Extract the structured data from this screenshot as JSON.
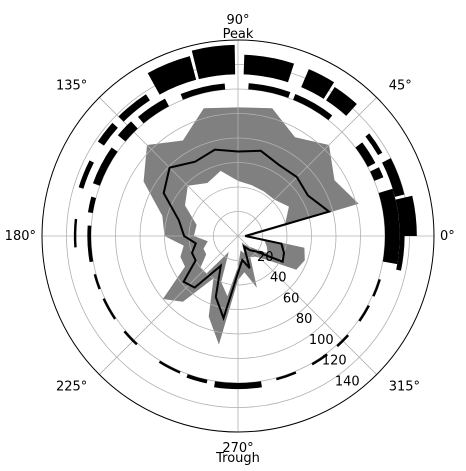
{
  "chart_data": {
    "type": "polar",
    "angle_tick_labels": [
      "0°",
      "45°",
      "90°",
      "135°",
      "180°",
      "225°",
      "270°",
      "315°"
    ],
    "angle_ticks_deg": [
      0,
      45,
      90,
      135,
      180,
      225,
      270,
      315
    ],
    "annotation_top": "Peak",
    "annotation_bottom": "Trough",
    "radial_ticks": [
      20,
      40,
      60,
      80,
      100,
      120,
      140
    ],
    "radial_tick_labels": [
      "20",
      "40",
      "60",
      "80",
      "100",
      "120",
      "140"
    ],
    "rlim": [
      0,
      160
    ],
    "grid": true,
    "mean_line": {
      "angle_deg": [
        0,
        15,
        30,
        45,
        60,
        75,
        90,
        105,
        120,
        135,
        150,
        165,
        180,
        190,
        200,
        210,
        220,
        230,
        240,
        250,
        260,
        270,
        280,
        290,
        300,
        310,
        320,
        330,
        340,
        350
      ],
      "r": [
        6,
        77,
        66,
        68,
        67,
        72,
        69,
        73,
        70,
        79,
        70,
        50,
        44,
        35,
        40,
        40,
        58,
        55,
        28,
        53,
        68,
        30,
        20,
        28,
        10,
        15,
        20,
        42,
        40,
        36
      ]
    },
    "band": {
      "angle_deg": [
        0,
        15,
        30,
        45,
        60,
        75,
        90,
        105,
        120,
        135,
        150,
        165,
        180,
        190,
        200,
        210,
        220,
        230,
        240,
        250,
        260,
        270,
        280,
        290,
        300,
        310,
        320,
        330,
        340,
        350
      ],
      "lower": [
        4,
        40,
        48,
        42,
        42,
        43,
        45,
        55,
        50,
        58,
        50,
        35,
        36,
        25,
        30,
        30,
        40,
        40,
        15,
        40,
        50,
        25,
        12,
        15,
        6,
        10,
        15,
        28,
        25,
        22
      ],
      "upper": [
        10,
        102,
        91,
        105,
        93,
        108,
        105,
        108,
        90,
        105,
        89,
        64,
        60,
        45,
        50,
        50,
        80,
        70,
        40,
        70,
        90,
        36,
        30,
        45,
        20,
        22,
        30,
        55,
        58,
        55
      ]
    },
    "ring_bars": {
      "inner": [
        {
          "start": 350,
          "end": 360,
          "r0": 120,
          "r1": 132
        },
        {
          "start": 0,
          "end": 17,
          "r0": 120,
          "r1": 132
        },
        {
          "start": 22,
          "end": 26,
          "r0": 120,
          "r1": 128
        },
        {
          "start": 28,
          "end": 37,
          "r0": 120,
          "r1": 127
        },
        {
          "start": 52,
          "end": 68,
          "r0": 120,
          "r1": 125
        },
        {
          "start": 70,
          "end": 86,
          "r0": 120,
          "r1": 125
        },
        {
          "start": 95,
          "end": 112,
          "r0": 120,
          "r1": 125
        },
        {
          "start": 118,
          "end": 130,
          "r0": 120,
          "r1": 127
        },
        {
          "start": 133,
          "end": 140,
          "r0": 120,
          "r1": 128
        },
        {
          "start": 145,
          "end": 160,
          "r0": 120,
          "r1": 126
        },
        {
          "start": 165,
          "end": 171,
          "r0": 120,
          "r1": 124
        },
        {
          "start": 176,
          "end": 190,
          "r0": 120,
          "r1": 123
        },
        {
          "start": 195,
          "end": 201,
          "r0": 120,
          "r1": 122
        },
        {
          "start": 205,
          "end": 214,
          "r0": 120,
          "r1": 122
        },
        {
          "start": 220,
          "end": 227,
          "r0": 120,
          "r1": 122
        },
        {
          "start": 238,
          "end": 247,
          "r0": 120,
          "r1": 122
        },
        {
          "start": 250,
          "end": 258,
          "r0": 120,
          "r1": 123
        },
        {
          "start": 261,
          "end": 279,
          "r0": 120,
          "r1": 125
        },
        {
          "start": 285,
          "end": 293,
          "r0": 120,
          "r1": 122
        },
        {
          "start": 300,
          "end": 307,
          "r0": 120,
          "r1": 122
        },
        {
          "start": 312,
          "end": 318,
          "r0": 120,
          "r1": 122
        },
        {
          "start": 325,
          "end": 332,
          "r0": 120,
          "r1": 122
        },
        {
          "start": 336,
          "end": 343,
          "r0": 120,
          "r1": 122
        }
      ],
      "outer": [
        {
          "start": 348,
          "end": 360,
          "r0": 132,
          "r1": 136
        },
        {
          "start": 0,
          "end": 13,
          "r0": 132,
          "r1": 146
        },
        {
          "start": 14,
          "end": 27,
          "r0": 132,
          "r1": 140
        },
        {
          "start": 30,
          "end": 38,
          "r0": 132,
          "r1": 136
        },
        {
          "start": 48,
          "end": 57,
          "r0": 132,
          "r1": 145
        },
        {
          "start": 58,
          "end": 67,
          "r0": 132,
          "r1": 148
        },
        {
          "start": 72,
          "end": 88,
          "r0": 132,
          "r1": 148
        },
        {
          "start": 91,
          "end": 104,
          "r0": 132,
          "r1": 156
        },
        {
          "start": 105,
          "end": 119,
          "r0": 132,
          "r1": 152
        },
        {
          "start": 123,
          "end": 135,
          "r0": 132,
          "r1": 138
        },
        {
          "start": 138,
          "end": 146,
          "r0": 132,
          "r1": 138
        },
        {
          "start": 153,
          "end": 163,
          "r0": 132,
          "r1": 136
        },
        {
          "start": 174,
          "end": 184,
          "r0": 132,
          "r1": 134
        }
      ]
    }
  }
}
